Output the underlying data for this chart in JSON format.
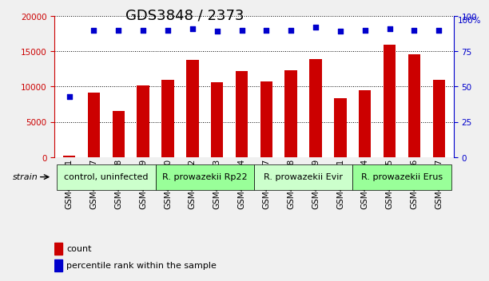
{
  "title": "GDS3848 / 2373",
  "samples": [
    "GSM403281",
    "GSM403377",
    "GSM403378",
    "GSM403379",
    "GSM403380",
    "GSM403382",
    "GSM403383",
    "GSM403384",
    "GSM403387",
    "GSM403388",
    "GSM403389",
    "GSM403391",
    "GSM403444",
    "GSM403445",
    "GSM403446",
    "GSM403447"
  ],
  "counts": [
    200,
    9100,
    6500,
    10100,
    11000,
    13800,
    10600,
    12200,
    10700,
    12300,
    13900,
    8300,
    9500,
    15900,
    14600,
    11000
  ],
  "percentile": [
    43,
    90,
    90,
    90,
    90,
    91,
    89,
    90,
    90,
    90,
    92,
    89,
    90,
    91,
    90,
    90
  ],
  "groups": [
    {
      "label": "control, uninfected",
      "start": 0,
      "end": 4,
      "color": "#ccffcc"
    },
    {
      "label": "R. prowazekii Rp22",
      "start": 4,
      "end": 8,
      "color": "#99ff99"
    },
    {
      "label": "R. prowazekii Evir",
      "start": 8,
      "end": 12,
      "color": "#ccffcc"
    },
    {
      "label": "R. prowazekii Erus",
      "start": 12,
      "end": 16,
      "color": "#99ff99"
    }
  ],
  "bar_color": "#cc0000",
  "dot_color": "#0000cc",
  "left_axis_color": "#cc0000",
  "right_axis_color": "#0000cc",
  "ylim_left": [
    0,
    20000
  ],
  "ylim_right": [
    0,
    100
  ],
  "left_ticks": [
    0,
    5000,
    10000,
    15000,
    20000
  ],
  "right_ticks": [
    0,
    25,
    50,
    75,
    100
  ],
  "background_color": "#f0f0f0",
  "plot_bg": "#ffffff",
  "grid_color": "#000000",
  "title_fontsize": 13,
  "tick_fontsize": 7.5,
  "label_fontsize": 8,
  "group_fontsize": 8
}
